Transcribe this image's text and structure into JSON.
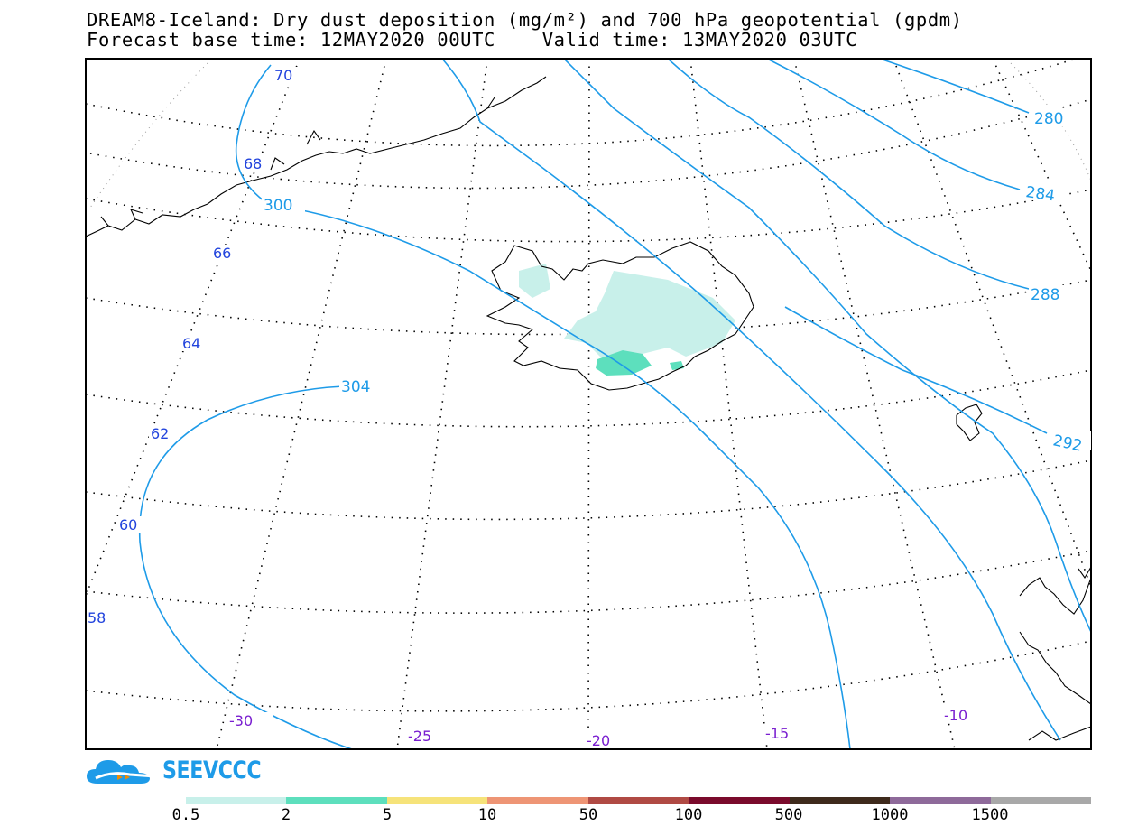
{
  "title": {
    "line1": "DREAM8-Iceland: Dry dust deposition (mg/m²) and 700 hPa geopotential (gpdm)",
    "line2": "Forecast base time: 12MAY2020 00UTC    Valid time: 13MAY2020 03UTC"
  },
  "map": {
    "region": "Iceland",
    "variable": "Dry dust deposition",
    "variable_units": "mg/m²",
    "contour_variable": "700 hPa geopotential",
    "contour_units": "gpdm",
    "latitude_labels": [
      "70",
      "68",
      "66",
      "64",
      "62",
      "60",
      "58"
    ],
    "longitude_labels": [
      "-30",
      "-25",
      "-20",
      "-15",
      "-10"
    ],
    "geopotential_labels": [
      "300",
      "304",
      "280",
      "284",
      "288",
      "292"
    ]
  },
  "logo": {
    "text": "SEEVCCC",
    "icon": "cloud-arrows-icon"
  },
  "legend": {
    "labels": [
      "0.5",
      "2",
      "5",
      "10",
      "50",
      "100",
      "500",
      "1000",
      "1500"
    ],
    "colors": [
      "#c8f0ea",
      "#5ddfbd",
      "#f6e37a",
      "#ee9575",
      "#b04a44",
      "#7a0a2c",
      "#3e2a1c",
      "#8e6a9a",
      "#a8a8a8"
    ]
  }
}
